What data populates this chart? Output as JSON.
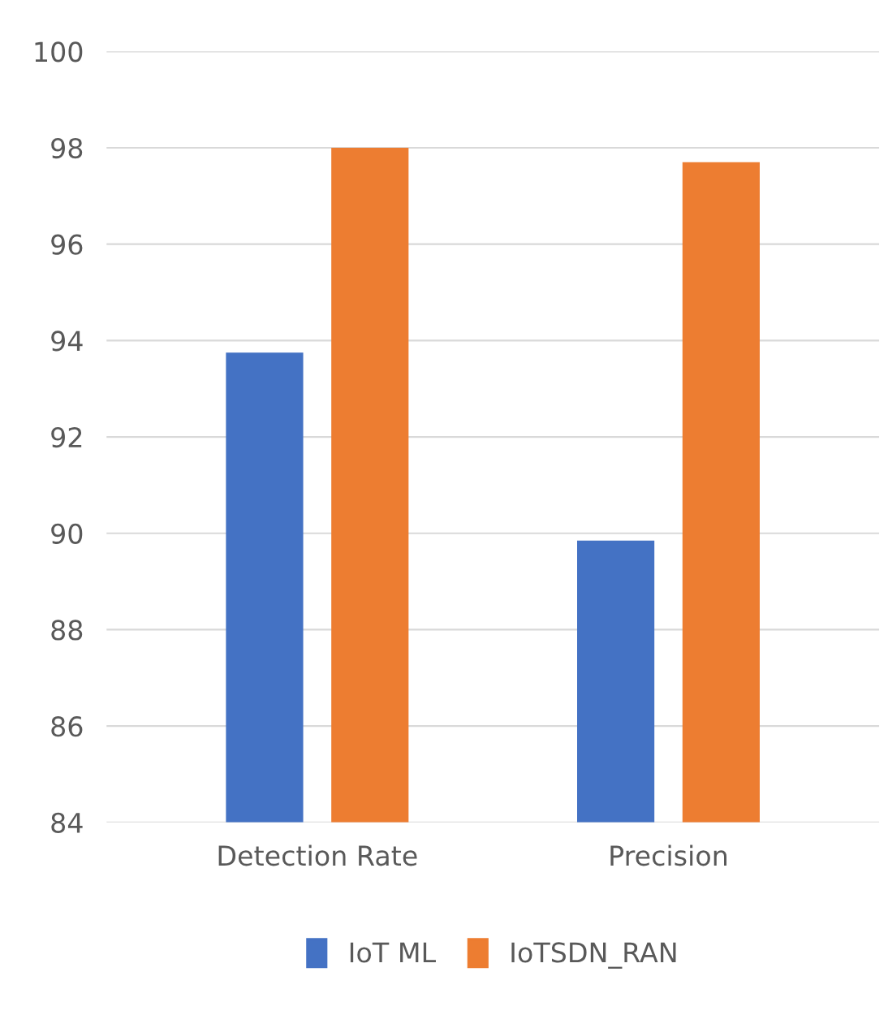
{
  "chart_data": {
    "type": "bar",
    "categories": [
      "Detection Rate",
      "Precision"
    ],
    "series": [
      {
        "name": "IoT ML",
        "color": "#4472c4",
        "values": [
          93.75,
          89.85
        ]
      },
      {
        "name": "IoTSDN_RAN",
        "color": "#ed7d31",
        "values": [
          98.0,
          97.7
        ]
      }
    ],
    "ylim": [
      84,
      100
    ],
    "yticks": [
      84,
      86,
      88,
      90,
      92,
      94,
      96,
      98,
      100
    ],
    "grid": "y",
    "legend": "bottom"
  }
}
